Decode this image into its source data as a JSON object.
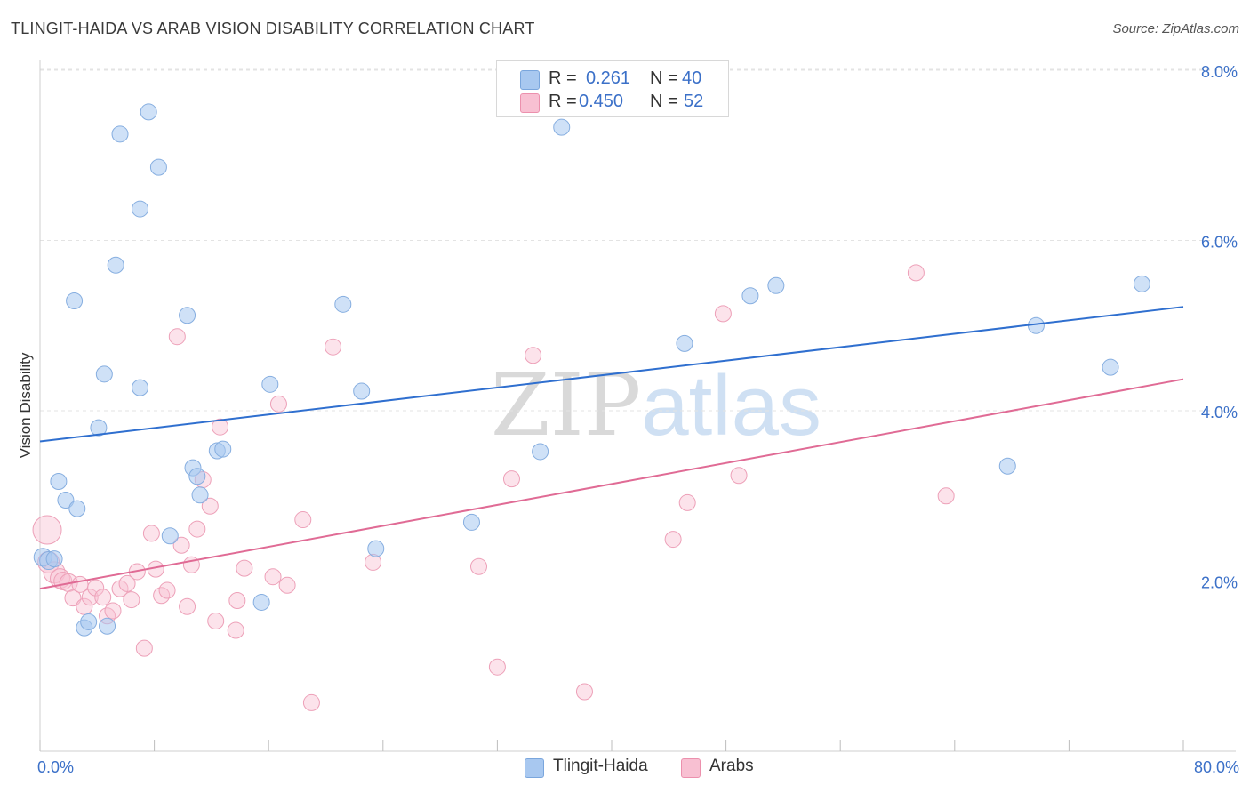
{
  "title": "TLINGIT-HAIDA VS ARAB VISION DISABILITY CORRELATION CHART",
  "source": "Source: ZipAtlas.com",
  "watermark": {
    "zip": "ZIP",
    "atlas": "atlas"
  },
  "legend": {
    "rows": [
      {
        "r_label": "R =",
        "r_value": "0.261",
        "n_label": "N =",
        "n_value": "40",
        "color": "#a8c8f0",
        "border": "#7aa6dd"
      },
      {
        "r_label": "R =",
        "r_value": "0.450",
        "n_label": "N =",
        "n_value": "52",
        "color": "#f8c0d2",
        "border": "#ec90ad"
      }
    ]
  },
  "bottom_legend": [
    {
      "label": "Tlingit-Haida",
      "color": "#a8c8f0",
      "border": "#7aa6dd"
    },
    {
      "label": "Arabs",
      "color": "#f8c0d2",
      "border": "#ec90ad"
    }
  ],
  "colors": {
    "blue_fill": "rgba(168,200,240,0.55)",
    "blue_stroke": "#86aee0",
    "blue_line": "#2f6fcf",
    "pink_fill": "rgba(248,192,210,0.45)",
    "pink_stroke": "#eda0b8",
    "pink_line": "#e06b95",
    "tick_label": "#3b70c8"
  },
  "chart_data": {
    "type": "scatter",
    "title": "TLINGIT-HAIDA VS ARAB VISION DISABILITY CORRELATION CHART",
    "xlabel": "",
    "ylabel": "Vision Disability",
    "xlim": [
      0,
      80
    ],
    "ylim": [
      0,
      8.4
    ],
    "x_tick_labels": [
      "0.0%",
      "80.0%"
    ],
    "y_ticks": [
      2,
      4,
      6,
      8
    ],
    "y_tick_labels": [
      "2.0%",
      "4.0%",
      "6.0%",
      "8.0%"
    ],
    "grid": true,
    "series": [
      {
        "name": "Tlingit-Haida",
        "r": 0.261,
        "n": 40,
        "trend": [
          [
            0,
            3.64
          ],
          [
            80,
            5.22
          ]
        ],
        "points": [
          {
            "x": 0.2,
            "y": 2.28,
            "s": 10
          },
          {
            "x": 0.6,
            "y": 2.24,
            "s": 10
          },
          {
            "x": 1.0,
            "y": 2.26,
            "s": 9
          },
          {
            "x": 1.3,
            "y": 3.17,
            "s": 9
          },
          {
            "x": 1.8,
            "y": 2.95,
            "s": 9
          },
          {
            "x": 2.4,
            "y": 5.29,
            "s": 9
          },
          {
            "x": 2.6,
            "y": 2.85,
            "s": 9
          },
          {
            "x": 3.1,
            "y": 1.45,
            "s": 9
          },
          {
            "x": 3.4,
            "y": 1.52,
            "s": 9
          },
          {
            "x": 4.1,
            "y": 3.8,
            "s": 9
          },
          {
            "x": 4.5,
            "y": 4.43,
            "s": 9
          },
          {
            "x": 4.7,
            "y": 1.47,
            "s": 9
          },
          {
            "x": 5.3,
            "y": 5.71,
            "s": 9
          },
          {
            "x": 5.6,
            "y": 7.25,
            "s": 9
          },
          {
            "x": 7.0,
            "y": 6.37,
            "s": 9
          },
          {
            "x": 7.0,
            "y": 4.27,
            "s": 9
          },
          {
            "x": 7.6,
            "y": 7.51,
            "s": 9
          },
          {
            "x": 8.3,
            "y": 6.86,
            "s": 9
          },
          {
            "x": 9.1,
            "y": 2.53,
            "s": 9
          },
          {
            "x": 10.3,
            "y": 5.12,
            "s": 9
          },
          {
            "x": 10.7,
            "y": 3.33,
            "s": 9
          },
          {
            "x": 11.0,
            "y": 3.23,
            "s": 9
          },
          {
            "x": 11.2,
            "y": 3.01,
            "s": 9
          },
          {
            "x": 12.4,
            "y": 3.53,
            "s": 9
          },
          {
            "x": 12.8,
            "y": 3.55,
            "s": 9
          },
          {
            "x": 15.5,
            "y": 1.75,
            "s": 9
          },
          {
            "x": 16.1,
            "y": 4.31,
            "s": 9
          },
          {
            "x": 21.2,
            "y": 5.25,
            "s": 9
          },
          {
            "x": 22.5,
            "y": 4.23,
            "s": 9
          },
          {
            "x": 23.5,
            "y": 2.38,
            "s": 9
          },
          {
            "x": 30.2,
            "y": 2.69,
            "s": 9
          },
          {
            "x": 35.0,
            "y": 3.52,
            "s": 9
          },
          {
            "x": 36.5,
            "y": 7.33,
            "s": 9
          },
          {
            "x": 45.1,
            "y": 4.79,
            "s": 9
          },
          {
            "x": 49.7,
            "y": 5.35,
            "s": 9
          },
          {
            "x": 51.5,
            "y": 5.47,
            "s": 9
          },
          {
            "x": 67.7,
            "y": 3.35,
            "s": 9
          },
          {
            "x": 69.7,
            "y": 5.0,
            "s": 9
          },
          {
            "x": 74.9,
            "y": 4.51,
            "s": 9
          },
          {
            "x": 77.1,
            "y": 5.49,
            "s": 9
          }
        ]
      },
      {
        "name": "Arabs",
        "r": 0.45,
        "n": 52,
        "trend": [
          [
            0,
            1.91
          ],
          [
            80,
            4.37
          ]
        ],
        "points": [
          {
            "x": 0.5,
            "y": 2.6,
            "s": 16
          },
          {
            "x": 0.6,
            "y": 2.22,
            "s": 12
          },
          {
            "x": 1.0,
            "y": 2.1,
            "s": 12
          },
          {
            "x": 1.4,
            "y": 2.03,
            "s": 11
          },
          {
            "x": 1.6,
            "y": 2.0,
            "s": 10
          },
          {
            "x": 2.0,
            "y": 1.98,
            "s": 10
          },
          {
            "x": 2.3,
            "y": 1.8,
            "s": 9
          },
          {
            "x": 2.8,
            "y": 1.96,
            "s": 9
          },
          {
            "x": 3.1,
            "y": 1.7,
            "s": 9
          },
          {
            "x": 3.5,
            "y": 1.81,
            "s": 9
          },
          {
            "x": 3.9,
            "y": 1.92,
            "s": 9
          },
          {
            "x": 4.4,
            "y": 1.81,
            "s": 9
          },
          {
            "x": 4.7,
            "y": 1.59,
            "s": 9
          },
          {
            "x": 5.1,
            "y": 1.65,
            "s": 9
          },
          {
            "x": 5.6,
            "y": 1.91,
            "s": 9
          },
          {
            "x": 6.1,
            "y": 1.97,
            "s": 9
          },
          {
            "x": 6.4,
            "y": 1.78,
            "s": 9
          },
          {
            "x": 6.8,
            "y": 2.11,
            "s": 9
          },
          {
            "x": 7.3,
            "y": 1.21,
            "s": 9
          },
          {
            "x": 7.8,
            "y": 2.56,
            "s": 9
          },
          {
            "x": 8.1,
            "y": 2.14,
            "s": 9
          },
          {
            "x": 8.5,
            "y": 1.83,
            "s": 9
          },
          {
            "x": 8.9,
            "y": 1.89,
            "s": 9
          },
          {
            "x": 9.6,
            "y": 4.87,
            "s": 9
          },
          {
            "x": 9.9,
            "y": 2.42,
            "s": 9
          },
          {
            "x": 10.3,
            "y": 1.7,
            "s": 9
          },
          {
            "x": 10.6,
            "y": 2.19,
            "s": 9
          },
          {
            "x": 11.0,
            "y": 2.61,
            "s": 9
          },
          {
            "x": 11.4,
            "y": 3.19,
            "s": 9
          },
          {
            "x": 11.9,
            "y": 2.88,
            "s": 9
          },
          {
            "x": 12.3,
            "y": 1.53,
            "s": 9
          },
          {
            "x": 12.6,
            "y": 3.81,
            "s": 9
          },
          {
            "x": 13.7,
            "y": 1.42,
            "s": 9
          },
          {
            "x": 13.8,
            "y": 1.77,
            "s": 9
          },
          {
            "x": 14.3,
            "y": 2.15,
            "s": 9
          },
          {
            "x": 16.3,
            "y": 2.05,
            "s": 9
          },
          {
            "x": 16.7,
            "y": 4.08,
            "s": 9
          },
          {
            "x": 17.3,
            "y": 1.95,
            "s": 9
          },
          {
            "x": 18.4,
            "y": 2.72,
            "s": 9
          },
          {
            "x": 19.0,
            "y": 0.57,
            "s": 9
          },
          {
            "x": 20.5,
            "y": 4.75,
            "s": 9
          },
          {
            "x": 23.3,
            "y": 2.22,
            "s": 9
          },
          {
            "x": 30.7,
            "y": 2.17,
            "s": 9
          },
          {
            "x": 32.0,
            "y": 0.99,
            "s": 9
          },
          {
            "x": 33.0,
            "y": 3.2,
            "s": 9
          },
          {
            "x": 34.5,
            "y": 4.65,
            "s": 9
          },
          {
            "x": 38.1,
            "y": 0.7,
            "s": 9
          },
          {
            "x": 44.3,
            "y": 2.49,
            "s": 9
          },
          {
            "x": 45.3,
            "y": 2.92,
            "s": 9
          },
          {
            "x": 47.8,
            "y": 5.14,
            "s": 9
          },
          {
            "x": 48.9,
            "y": 3.24,
            "s": 9
          },
          {
            "x": 63.4,
            "y": 3.0,
            "s": 9
          },
          {
            "x": 61.3,
            "y": 5.62,
            "s": 9
          }
        ]
      }
    ]
  }
}
